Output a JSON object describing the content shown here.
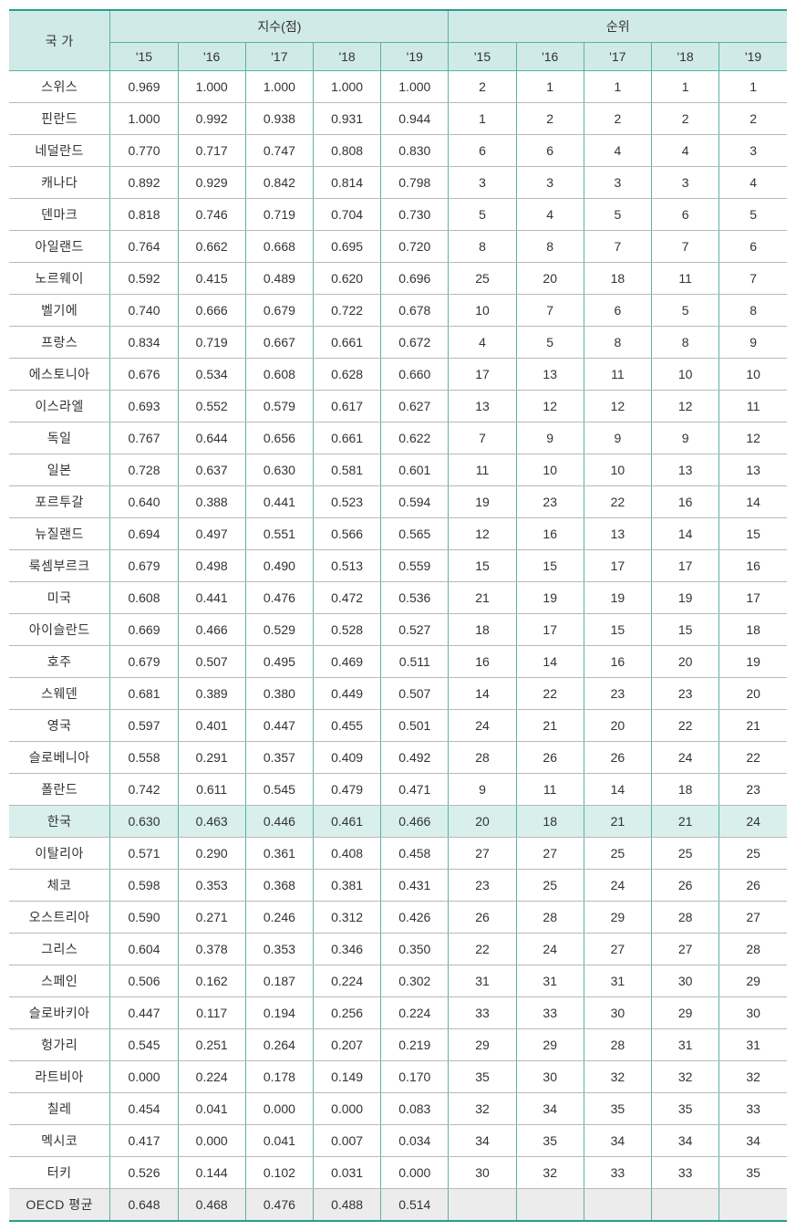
{
  "table": {
    "type": "table",
    "background_color": "#ffffff",
    "header_bg": "#d0eae7",
    "border_color": "#5bb0a8",
    "outer_border_color": "#2a9d8f",
    "highlight_bg": "#d8efeb",
    "footer_bg": "#ececec",
    "font_size": 14,
    "header": {
      "country_label": "국 가",
      "index_label": "지수(점)",
      "rank_label": "순위",
      "years": [
        "'15",
        "'16",
        "'17",
        "'18",
        "'19"
      ]
    },
    "highlight_row_index": 23,
    "footer_row_index": 35,
    "columns": [
      "국 가",
      "'15",
      "'16",
      "'17",
      "'18",
      "'19",
      "'15",
      "'16",
      "'17",
      "'18",
      "'19"
    ],
    "rows": [
      {
        "country": "스위스",
        "index": [
          "0.969",
          "1.000",
          "1.000",
          "1.000",
          "1.000"
        ],
        "rank": [
          "2",
          "1",
          "1",
          "1",
          "1"
        ]
      },
      {
        "country": "핀란드",
        "index": [
          "1.000",
          "0.992",
          "0.938",
          "0.931",
          "0.944"
        ],
        "rank": [
          "1",
          "2",
          "2",
          "2",
          "2"
        ]
      },
      {
        "country": "네덜란드",
        "index": [
          "0.770",
          "0.717",
          "0.747",
          "0.808",
          "0.830"
        ],
        "rank": [
          "6",
          "6",
          "4",
          "4",
          "3"
        ]
      },
      {
        "country": "캐나다",
        "index": [
          "0.892",
          "0.929",
          "0.842",
          "0.814",
          "0.798"
        ],
        "rank": [
          "3",
          "3",
          "3",
          "3",
          "4"
        ]
      },
      {
        "country": "덴마크",
        "index": [
          "0.818",
          "0.746",
          "0.719",
          "0.704",
          "0.730"
        ],
        "rank": [
          "5",
          "4",
          "5",
          "6",
          "5"
        ]
      },
      {
        "country": "아일랜드",
        "index": [
          "0.764",
          "0.662",
          "0.668",
          "0.695",
          "0.720"
        ],
        "rank": [
          "8",
          "8",
          "7",
          "7",
          "6"
        ]
      },
      {
        "country": "노르웨이",
        "index": [
          "0.592",
          "0.415",
          "0.489",
          "0.620",
          "0.696"
        ],
        "rank": [
          "25",
          "20",
          "18",
          "11",
          "7"
        ]
      },
      {
        "country": "벨기에",
        "index": [
          "0.740",
          "0.666",
          "0.679",
          "0.722",
          "0.678"
        ],
        "rank": [
          "10",
          "7",
          "6",
          "5",
          "8"
        ]
      },
      {
        "country": "프랑스",
        "index": [
          "0.834",
          "0.719",
          "0.667",
          "0.661",
          "0.672"
        ],
        "rank": [
          "4",
          "5",
          "8",
          "8",
          "9"
        ]
      },
      {
        "country": "에스토니아",
        "index": [
          "0.676",
          "0.534",
          "0.608",
          "0.628",
          "0.660"
        ],
        "rank": [
          "17",
          "13",
          "11",
          "10",
          "10"
        ]
      },
      {
        "country": "이스라엘",
        "index": [
          "0.693",
          "0.552",
          "0.579",
          "0.617",
          "0.627"
        ],
        "rank": [
          "13",
          "12",
          "12",
          "12",
          "11"
        ]
      },
      {
        "country": "독일",
        "index": [
          "0.767",
          "0.644",
          "0.656",
          "0.661",
          "0.622"
        ],
        "rank": [
          "7",
          "9",
          "9",
          "9",
          "12"
        ]
      },
      {
        "country": "일본",
        "index": [
          "0.728",
          "0.637",
          "0.630",
          "0.581",
          "0.601"
        ],
        "rank": [
          "11",
          "10",
          "10",
          "13",
          "13"
        ]
      },
      {
        "country": "포르투갈",
        "index": [
          "0.640",
          "0.388",
          "0.441",
          "0.523",
          "0.594"
        ],
        "rank": [
          "19",
          "23",
          "22",
          "16",
          "14"
        ]
      },
      {
        "country": "뉴질랜드",
        "index": [
          "0.694",
          "0.497",
          "0.551",
          "0.566",
          "0.565"
        ],
        "rank": [
          "12",
          "16",
          "13",
          "14",
          "15"
        ]
      },
      {
        "country": "룩셈부르크",
        "index": [
          "0.679",
          "0.498",
          "0.490",
          "0.513",
          "0.559"
        ],
        "rank": [
          "15",
          "15",
          "17",
          "17",
          "16"
        ]
      },
      {
        "country": "미국",
        "index": [
          "0.608",
          "0.441",
          "0.476",
          "0.472",
          "0.536"
        ],
        "rank": [
          "21",
          "19",
          "19",
          "19",
          "17"
        ]
      },
      {
        "country": "아이슬란드",
        "index": [
          "0.669",
          "0.466",
          "0.529",
          "0.528",
          "0.527"
        ],
        "rank": [
          "18",
          "17",
          "15",
          "15",
          "18"
        ]
      },
      {
        "country": "호주",
        "index": [
          "0.679",
          "0.507",
          "0.495",
          "0.469",
          "0.511"
        ],
        "rank": [
          "16",
          "14",
          "16",
          "20",
          "19"
        ]
      },
      {
        "country": "스웨덴",
        "index": [
          "0.681",
          "0.389",
          "0.380",
          "0.449",
          "0.507"
        ],
        "rank": [
          "14",
          "22",
          "23",
          "23",
          "20"
        ]
      },
      {
        "country": "영국",
        "index": [
          "0.597",
          "0.401",
          "0.447",
          "0.455",
          "0.501"
        ],
        "rank": [
          "24",
          "21",
          "20",
          "22",
          "21"
        ]
      },
      {
        "country": "슬로베니아",
        "index": [
          "0.558",
          "0.291",
          "0.357",
          "0.409",
          "0.492"
        ],
        "rank": [
          "28",
          "26",
          "26",
          "24",
          "22"
        ]
      },
      {
        "country": "폴란드",
        "index": [
          "0.742",
          "0.611",
          "0.545",
          "0.479",
          "0.471"
        ],
        "rank": [
          "9",
          "11",
          "14",
          "18",
          "23"
        ]
      },
      {
        "country": "한국",
        "index": [
          "0.630",
          "0.463",
          "0.446",
          "0.461",
          "0.466"
        ],
        "rank": [
          "20",
          "18",
          "21",
          "21",
          "24"
        ]
      },
      {
        "country": "이탈리아",
        "index": [
          "0.571",
          "0.290",
          "0.361",
          "0.408",
          "0.458"
        ],
        "rank": [
          "27",
          "27",
          "25",
          "25",
          "25"
        ]
      },
      {
        "country": "체코",
        "index": [
          "0.598",
          "0.353",
          "0.368",
          "0.381",
          "0.431"
        ],
        "rank": [
          "23",
          "25",
          "24",
          "26",
          "26"
        ]
      },
      {
        "country": "오스트리아",
        "index": [
          "0.590",
          "0.271",
          "0.246",
          "0.312",
          "0.426"
        ],
        "rank": [
          "26",
          "28",
          "29",
          "28",
          "27"
        ]
      },
      {
        "country": "그리스",
        "index": [
          "0.604",
          "0.378",
          "0.353",
          "0.346",
          "0.350"
        ],
        "rank": [
          "22",
          "24",
          "27",
          "27",
          "28"
        ]
      },
      {
        "country": "스페인",
        "index": [
          "0.506",
          "0.162",
          "0.187",
          "0.224",
          "0.302"
        ],
        "rank": [
          "31",
          "31",
          "31",
          "30",
          "29"
        ]
      },
      {
        "country": "슬로바키아",
        "index": [
          "0.447",
          "0.117",
          "0.194",
          "0.256",
          "0.224"
        ],
        "rank": [
          "33",
          "33",
          "30",
          "29",
          "30"
        ]
      },
      {
        "country": "헝가리",
        "index": [
          "0.545",
          "0.251",
          "0.264",
          "0.207",
          "0.219"
        ],
        "rank": [
          "29",
          "29",
          "28",
          "31",
          "31"
        ]
      },
      {
        "country": "라트비아",
        "index": [
          "0.000",
          "0.224",
          "0.178",
          "0.149",
          "0.170"
        ],
        "rank": [
          "35",
          "30",
          "32",
          "32",
          "32"
        ]
      },
      {
        "country": "칠레",
        "index": [
          "0.454",
          "0.041",
          "0.000",
          "0.000",
          "0.083"
        ],
        "rank": [
          "32",
          "34",
          "35",
          "35",
          "33"
        ]
      },
      {
        "country": "멕시코",
        "index": [
          "0.417",
          "0.000",
          "0.041",
          "0.007",
          "0.034"
        ],
        "rank": [
          "34",
          "35",
          "34",
          "34",
          "34"
        ]
      },
      {
        "country": "터키",
        "index": [
          "0.526",
          "0.144",
          "0.102",
          "0.031",
          "0.000"
        ],
        "rank": [
          "30",
          "32",
          "33",
          "33",
          "35"
        ]
      },
      {
        "country": "OECD 평균",
        "index": [
          "0.648",
          "0.468",
          "0.476",
          "0.488",
          "0.514"
        ],
        "rank": [
          "",
          "",
          "",
          "",
          ""
        ]
      }
    ]
  }
}
